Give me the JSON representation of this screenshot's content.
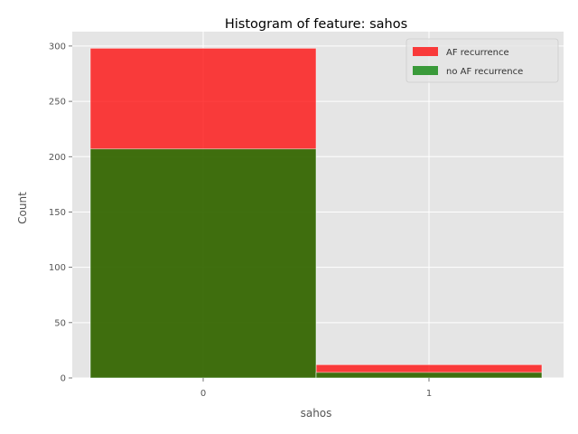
{
  "chart_data": {
    "type": "bar",
    "title": "Histogram of feature: sahos",
    "xlabel": "sahos",
    "ylabel": "Count",
    "categories": [
      "0",
      "1"
    ],
    "ylim": [
      0,
      313
    ],
    "yticks": [
      "0",
      "50",
      "100",
      "150",
      "200",
      "250",
      "300"
    ],
    "grid": true,
    "legend_position": "top-right",
    "overlay": true,
    "series": [
      {
        "name": "AF recurrence",
        "color": "#ff0000",
        "values": [
          298,
          12
        ]
      },
      {
        "name": "no AF recurrence",
        "color": "#008000",
        "values": [
          207,
          5
        ]
      }
    ]
  }
}
